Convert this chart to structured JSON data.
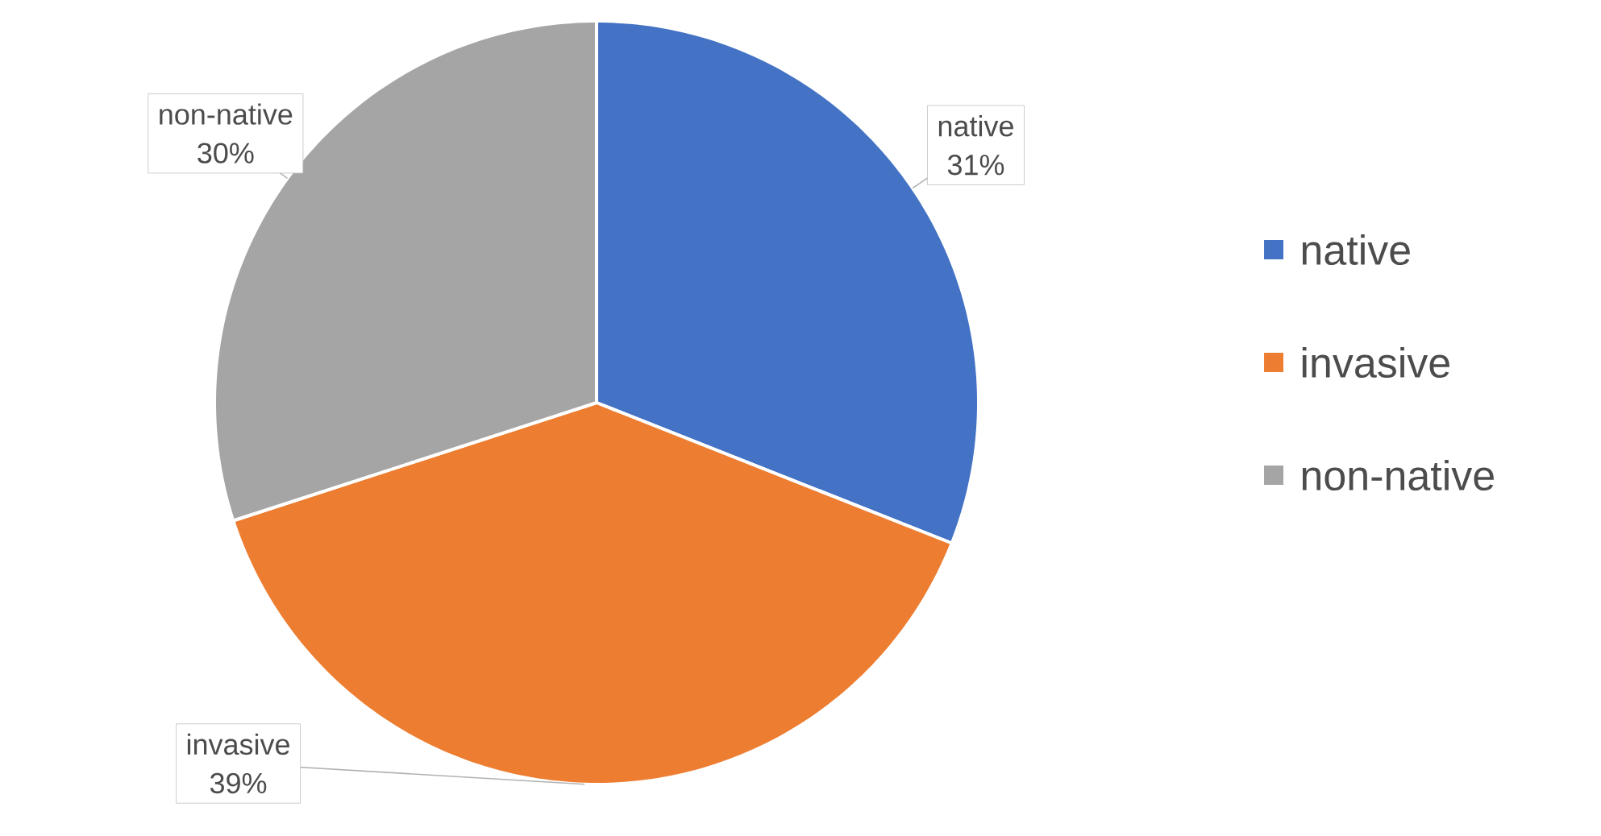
{
  "chart_data": {
    "type": "pie",
    "categories": [
      "native",
      "invasive",
      "non-native"
    ],
    "values": [
      31,
      39,
      30
    ],
    "value_labels": [
      "31%",
      "39%",
      "30%"
    ],
    "colors": [
      "#4472c4",
      "#ed7d31",
      "#a5a5a5"
    ],
    "legend": "right"
  }
}
